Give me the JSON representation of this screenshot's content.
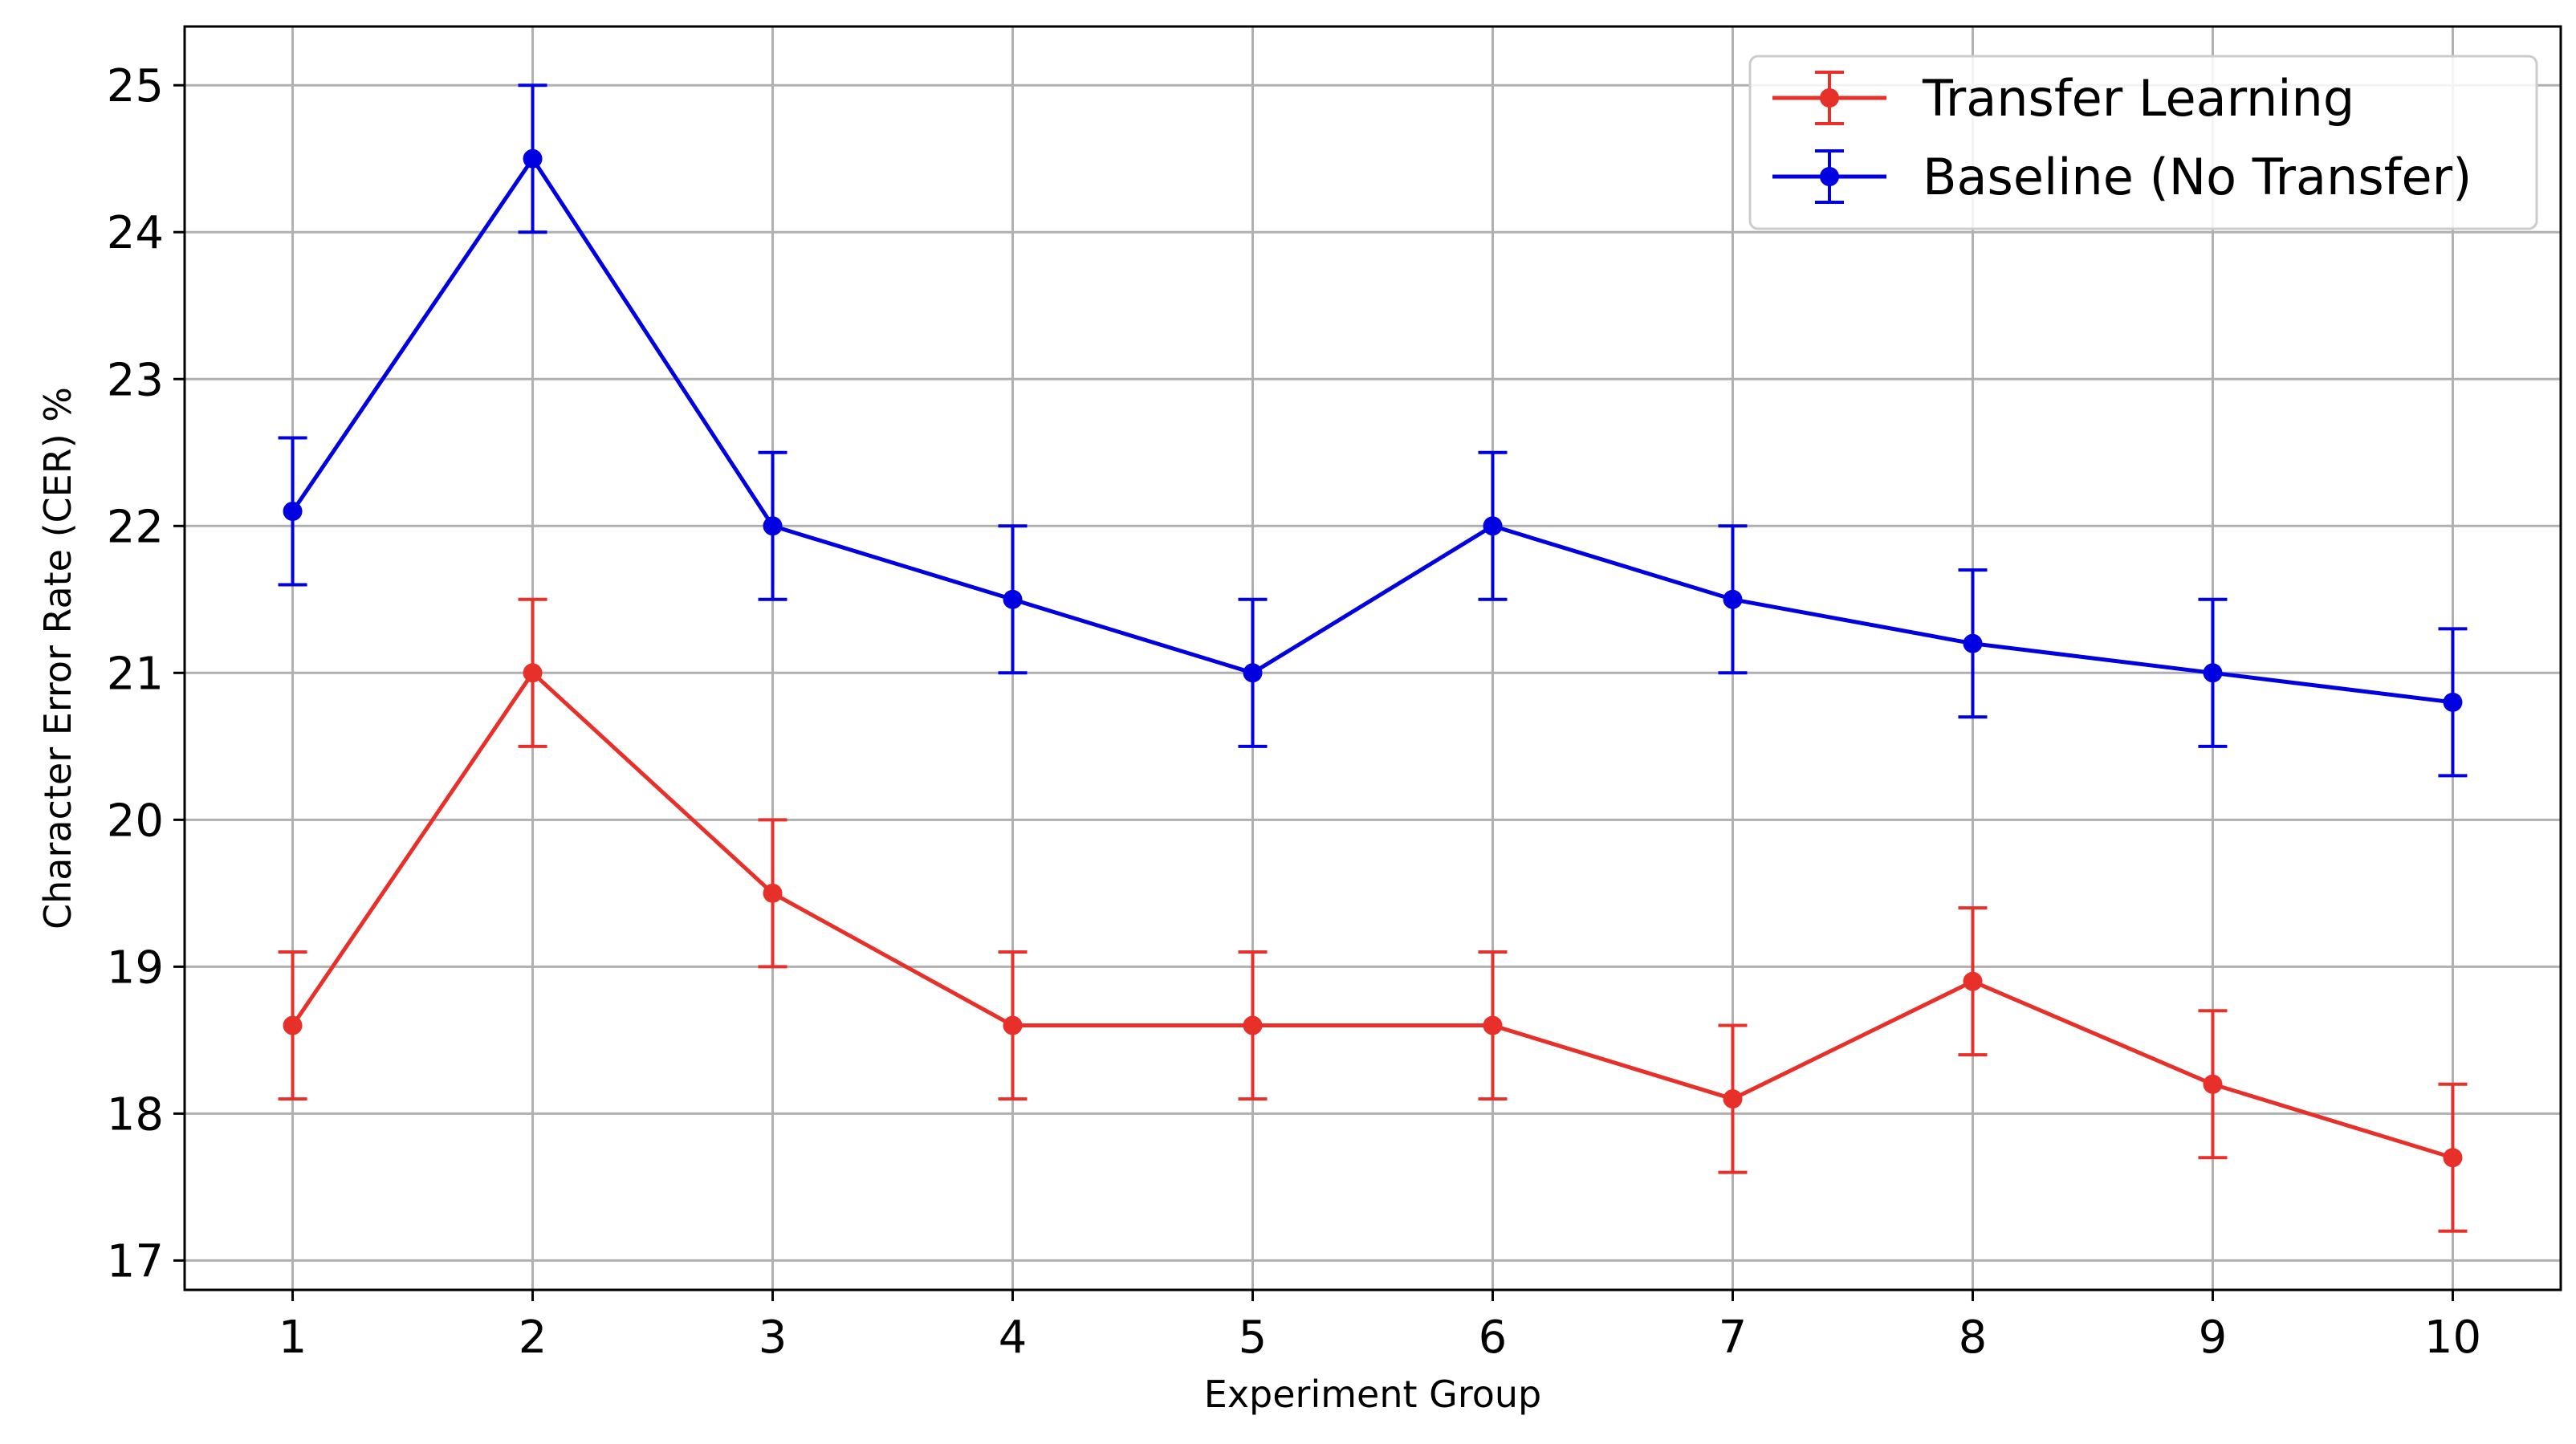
{
  "chart_data": {
    "type": "line",
    "title": "",
    "xlabel": "Experiment Group",
    "ylabel": "Character Error Rate (CER) %",
    "x": [
      1,
      2,
      3,
      4,
      5,
      6,
      7,
      8,
      9,
      10
    ],
    "xticks": [
      "1",
      "2",
      "3",
      "4",
      "5",
      "6",
      "7",
      "8",
      "9",
      "10"
    ],
    "yticks": [
      "17",
      "18",
      "19",
      "20",
      "21",
      "22",
      "23",
      "24",
      "25"
    ],
    "xlim": [
      0.55,
      10.45
    ],
    "ylim": [
      16.8,
      25.4
    ],
    "grid": true,
    "legend_position": "top-right",
    "series": [
      {
        "name": "Transfer Learning",
        "color": "#e8302a",
        "values": [
          18.6,
          21.0,
          19.5,
          18.6,
          18.6,
          18.6,
          18.1,
          18.9,
          18.2,
          17.7
        ],
        "error": [
          0.5,
          0.5,
          0.5,
          0.5,
          0.5,
          0.5,
          0.5,
          0.5,
          0.5,
          0.5
        ]
      },
      {
        "name": "Baseline (No Transfer)",
        "color": "#0000e0",
        "values": [
          22.1,
          24.5,
          22.0,
          21.5,
          21.0,
          22.0,
          21.5,
          21.2,
          21.0,
          20.8
        ],
        "error": [
          0.5,
          0.5,
          0.5,
          0.5,
          0.5,
          0.5,
          0.5,
          0.5,
          0.5,
          0.5
        ]
      }
    ]
  }
}
